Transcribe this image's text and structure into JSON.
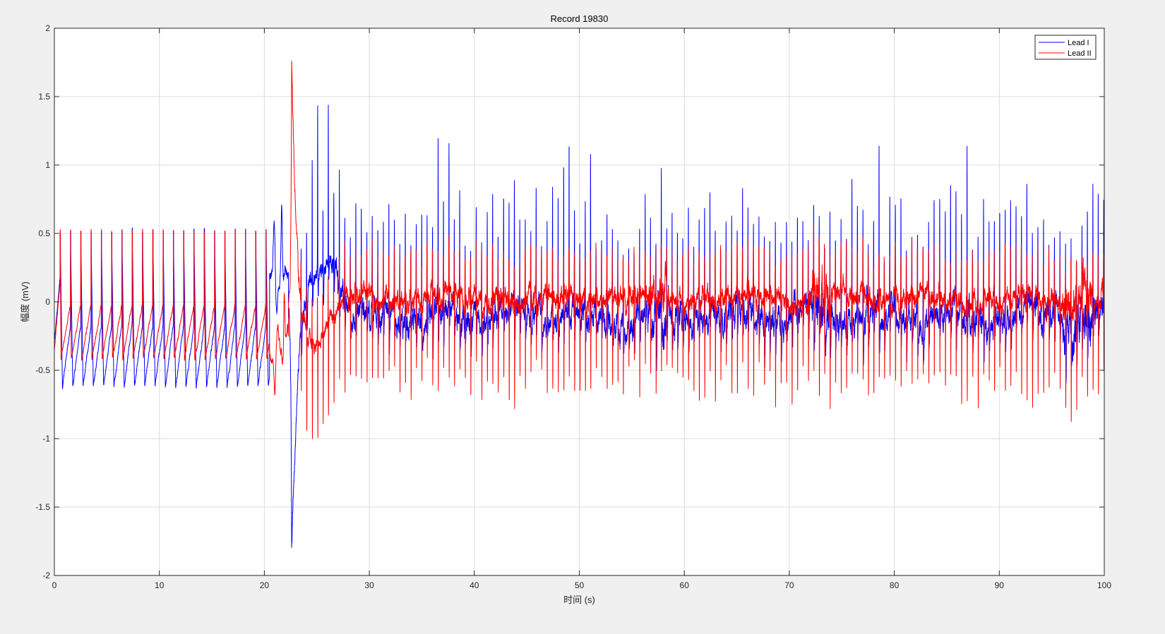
{
  "chart_data": {
    "type": "line",
    "title": "Record 19830",
    "xlabel": "时间 (s)",
    "ylabel": "幅度 (mV)",
    "xlim": [
      0,
      100
    ],
    "ylim": [
      -2,
      2
    ],
    "xticks": [
      0,
      10,
      20,
      30,
      40,
      50,
      60,
      70,
      80,
      90,
      100
    ],
    "yticks": [
      -2,
      -1.5,
      -1,
      -0.5,
      0,
      0.5,
      1,
      1.5,
      2
    ],
    "xtick_labels": [
      "0",
      "10",
      "20",
      "30",
      "40",
      "50",
      "60",
      "70",
      "80",
      "90",
      "100"
    ],
    "ytick_labels": [
      "-2",
      "-1.5",
      "-1",
      "-0.5",
      "0",
      "0.5",
      "1",
      "1.5",
      "2"
    ],
    "grid": true,
    "legend_position": "top-right",
    "series": [
      {
        "name": "Lead I",
        "color": "#0000ff",
        "description_points": {
          "pre_event_peak_mv": 0.52,
          "pre_event_trough_mv": -0.62,
          "event_min_mv": -1.8,
          "event_time_s": 22.6,
          "post_event_r_peak_range_mv": [
            0.55,
            1.24
          ],
          "post_event_baseline_mv": -0.1
        }
      },
      {
        "name": "Lead II",
        "color": "#ff0000",
        "description_points": {
          "pre_event_peak_mv": 0.52,
          "pre_event_trough_mv": -0.42,
          "event_max_mv": 1.8,
          "event_time_s": 22.6,
          "post_event_s_trough_range_mv": [
            -0.5,
            -0.9
          ],
          "post_event_baseline_mv": 0.02
        }
      }
    ]
  }
}
